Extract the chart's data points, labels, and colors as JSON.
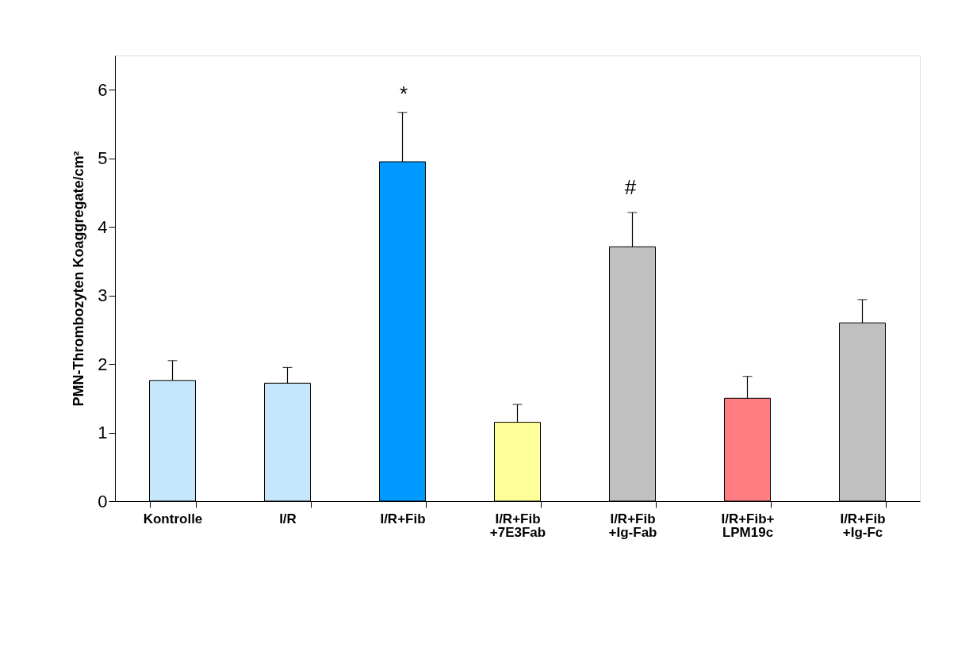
{
  "chart_data": {
    "type": "bar",
    "ylabel": "PMN-Thrombozyten Koaggregate/cm²",
    "categories": [
      "Kontrolle",
      "I/R",
      "I/R+Fib",
      "I/R+Fib\n+7E3Fab",
      "I/R+Fib\n+Ig-Fab",
      "I/R+Fib+\nLPM19c",
      "I/R+Fib\n+Ig-Fc"
    ],
    "values": [
      1.76,
      1.72,
      4.95,
      1.15,
      3.71,
      1.5,
      2.6
    ],
    "errors": [
      0.29,
      0.23,
      0.72,
      0.26,
      0.5,
      0.32,
      0.34
    ],
    "colors": [
      "#c6e6fc",
      "#c6e6fc",
      "#0099ff",
      "#ffff99",
      "#c0c0c0",
      "#ff7c80",
      "#c0c0c0"
    ],
    "ylim": [
      0,
      6.5
    ],
    "yticks": [
      0,
      1,
      2,
      3,
      4,
      5,
      6
    ],
    "grid": false,
    "annotations": [
      "*",
      "#"
    ]
  }
}
